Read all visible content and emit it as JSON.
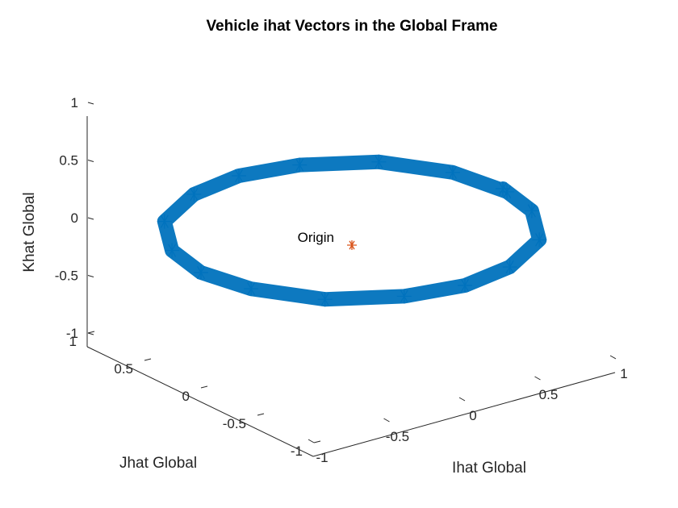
{
  "chart_data": {
    "type": "line3d",
    "title": "Vehicle ihat Vectors in the Global Frame",
    "xlabel": "Ihat Global",
    "ylabel": "Jhat Global",
    "zlabel": "Khat Global",
    "xlim": [
      -1,
      1
    ],
    "ylim": [
      -1,
      1
    ],
    "zlim": [
      -1,
      1
    ],
    "xticks": [
      "-1",
      "-0.5",
      "0",
      "0.5",
      "1"
    ],
    "yticks": [
      "-1",
      "-0.5",
      "0",
      "0.5",
      "1"
    ],
    "zticks": [
      "-1",
      "-0.5",
      "0",
      "0.5",
      "1"
    ],
    "series": [
      {
        "description": "unit ihat vector tips tracing a near-circle in the global frame",
        "color": "#0072BD",
        "marker": "star",
        "points": [
          [
            0.99,
            -0.05,
            0.0
          ],
          [
            0.93,
            0.35,
            0.0
          ],
          [
            0.71,
            0.71,
            0.0
          ],
          [
            0.35,
            0.93,
            0.0
          ],
          [
            0.0,
            1.0,
            0.0
          ],
          [
            -0.35,
            0.93,
            0.0
          ],
          [
            -0.71,
            0.71,
            0.0
          ],
          [
            -0.93,
            0.35,
            0.0
          ],
          [
            -1.0,
            0.0,
            0.0
          ],
          [
            -0.93,
            -0.35,
            0.0
          ],
          [
            -0.71,
            -0.71,
            0.0
          ],
          [
            -0.35,
            -0.93,
            0.0
          ],
          [
            0.0,
            -1.0,
            0.0
          ],
          [
            0.35,
            -0.93,
            0.0
          ],
          [
            0.71,
            -0.71,
            0.0
          ],
          [
            0.93,
            -0.35,
            0.0
          ],
          [
            1.0,
            0.0,
            0.0
          ]
        ]
      },
      {
        "name": "Origin",
        "color": "#D95319",
        "marker": "star",
        "points": [
          [
            0,
            0,
            0
          ]
        ]
      }
    ],
    "annotations": [
      {
        "text": "Origin",
        "at": [
          0,
          0,
          0
        ]
      }
    ],
    "grid": false,
    "box": false
  }
}
